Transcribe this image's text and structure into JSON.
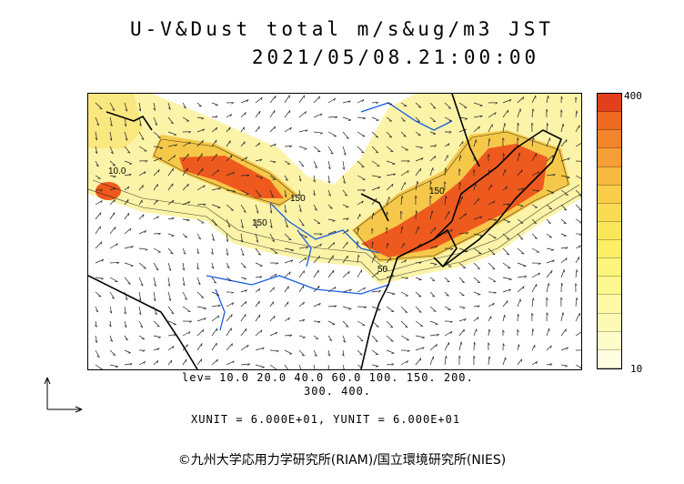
{
  "title": {
    "line1": "U-V&Dust total m/s&ug/m3 JST",
    "line2": "2021/05/08.21:00:00"
  },
  "colorbar": {
    "max_label": "400",
    "min_label": "10",
    "colors": [
      "#e2401a",
      "#ef6a22",
      "#f3852c",
      "#f59f36",
      "#f7b93f",
      "#f9cd47",
      "#fadb52",
      "#fbe65a",
      "#fcee66",
      "#fdf47c",
      "#fdf78f",
      "#fdf9a4",
      "#fdfab6",
      "#fefcca",
      "#fefde0"
    ]
  },
  "levels": {
    "line1": "lev= 10.0 20.0 40.0 60.0 100. 150. 200.",
    "line2": "300. 400."
  },
  "units_text": "XUNIT = 6.000E+01, YUNIT = 6.000E+01",
  "credit": "©九州大学応用力学研究所(RIAM)/国立環境研究所(NIES)",
  "map_labels": {
    "c1": "10.0",
    "c2": "150",
    "c3": "150",
    "c4": "150",
    "c5": "50"
  },
  "palette": {
    "coast": "#000000",
    "river": "#1a5fe0",
    "dust_low": "#fbf3a8",
    "dust_mid": "#f6c84a",
    "dust_high": "#ee5a1e"
  }
}
